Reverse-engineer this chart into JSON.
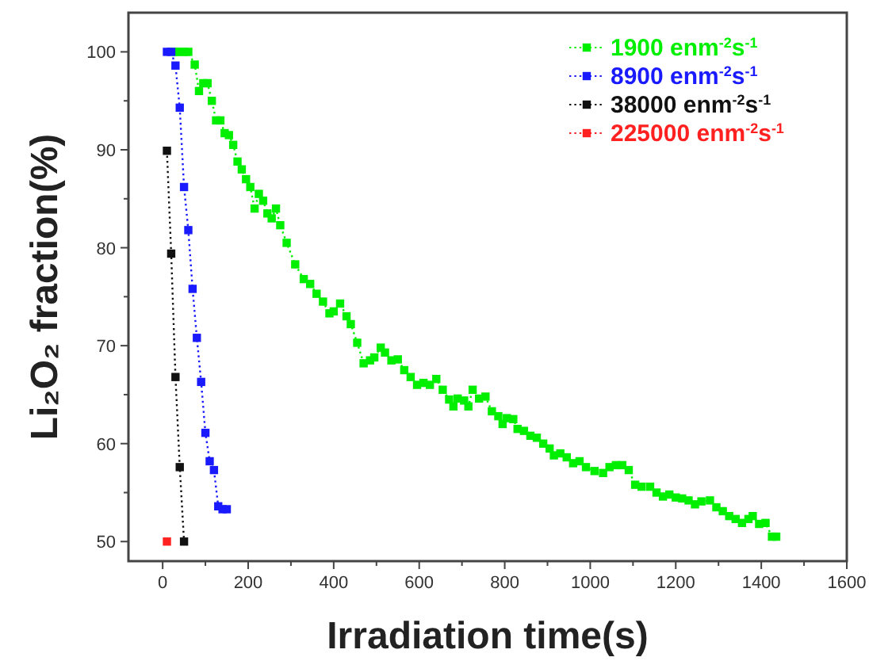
{
  "chart_data": {
    "type": "line",
    "xlabel": "Irradiation time(s)",
    "ylabel": "Li₂O₂ fraction(%)",
    "xlim": [
      -80,
      1600
    ],
    "ylim": [
      48,
      104
    ],
    "xticks": [
      0,
      {
        "value": 100,
        "label": null
      },
      200,
      {
        "value": 300,
        "label": null
      },
      400,
      {
        "value": 500,
        "label": null
      },
      600,
      {
        "value": 700,
        "label": null
      },
      800,
      {
        "value": 900,
        "label": null
      },
      1000,
      {
        "value": 1100,
        "label": null
      },
      1200,
      {
        "value": 1300,
        "label": null
      },
      1400,
      {
        "value": 1500,
        "label": null
      },
      1600
    ],
    "yticks": [
      50,
      {
        "value": 55,
        "label": null
      },
      60,
      {
        "value": 65,
        "label": null
      },
      70,
      {
        "value": 75,
        "label": null
      },
      80,
      {
        "value": 85,
        "label": null
      },
      90,
      {
        "value": 95,
        "label": null
      },
      100
    ],
    "legend": "top right",
    "marker": "square",
    "line_style": "dotted",
    "grid": false,
    "series": [
      {
        "name": "1900 enm$^{-2}$s$^{-1}$",
        "color": "#00ee00",
        "x": [
          30,
          40,
          50,
          60,
          75,
          85,
          95,
          105,
          115,
          125,
          135,
          145,
          155,
          165,
          175,
          185,
          195,
          205,
          215,
          225,
          235,
          245,
          255,
          265,
          275,
          290,
          310,
          330,
          345,
          360,
          375,
          390,
          400,
          415,
          430,
          440,
          455,
          470,
          485,
          495,
          510,
          520,
          535,
          550,
          565,
          580,
          595,
          610,
          625,
          640,
          655,
          670,
          680,
          690,
          705,
          715,
          725,
          740,
          755,
          770,
          785,
          795,
          805,
          820,
          830,
          845,
          860,
          875,
          890,
          905,
          915,
          930,
          945,
          960,
          975,
          990,
          1010,
          1030,
          1045,
          1060,
          1075,
          1090,
          1105,
          1120,
          1140,
          1155,
          1170,
          1185,
          1200,
          1215,
          1230,
          1245,
          1260,
          1280,
          1295,
          1310,
          1325,
          1340,
          1355,
          1370,
          1380,
          1395,
          1410,
          1425,
          1435
        ],
        "values": [
          100,
          100,
          100,
          100,
          98.7,
          96,
          96.8,
          96.8,
          95,
          93,
          93,
          91.7,
          91.5,
          90.5,
          88.8,
          88,
          87,
          86.2,
          84,
          85.5,
          84.8,
          83.5,
          83,
          84,
          82.3,
          80.5,
          78.3,
          76.8,
          76.3,
          75.3,
          74.5,
          73.3,
          73.5,
          74.3,
          73,
          72.2,
          70.3,
          68.2,
          68.5,
          68.8,
          69.8,
          69.3,
          68.5,
          68.6,
          67.5,
          66.8,
          66,
          66.2,
          66,
          66.6,
          65.5,
          64.5,
          63.8,
          64.6,
          64.4,
          63.8,
          65.5,
          64.6,
          64.8,
          63.3,
          62.8,
          62,
          62.6,
          62.5,
          61.5,
          61.3,
          60.8,
          60.6,
          60,
          59.5,
          58.8,
          59,
          58.6,
          58,
          58.2,
          57.6,
          57.2,
          57,
          57.6,
          57.8,
          57.8,
          57.3,
          55.8,
          55.6,
          55.6,
          55,
          54.6,
          54.8,
          54.5,
          54.4,
          54.2,
          53.8,
          54.1,
          54.2,
          53.5,
          53.1,
          52.6,
          52.3,
          51.9,
          52.3,
          52.6,
          51.8,
          51.9,
          50.5,
          50.5
        ]
      },
      {
        "name": "8900 enm$^{-2}$s$^{-1}$",
        "color": "#1a1aff",
        "x": [
          10,
          20,
          30,
          40,
          50,
          60,
          70,
          80,
          90,
          100,
          110,
          120,
          130,
          140,
          150
        ],
        "values": [
          100,
          100,
          98.6,
          94.3,
          86.2,
          81.8,
          75.8,
          70.8,
          66.3,
          61.1,
          58.2,
          57.3,
          53.6,
          53.3,
          53.3
        ]
      },
      {
        "name": "38000 enm$^{-2}$s$^{-1}$",
        "color": "#111111",
        "x": [
          10,
          20,
          30,
          40,
          50
        ],
        "values": [
          89.9,
          79.4,
          66.8,
          57.6,
          50
        ]
      },
      {
        "name": "225000 enm$^{-2}$s$^{-1}$",
        "color": "#ff2020",
        "x": [
          10
        ],
        "values": [
          50
        ]
      }
    ]
  }
}
